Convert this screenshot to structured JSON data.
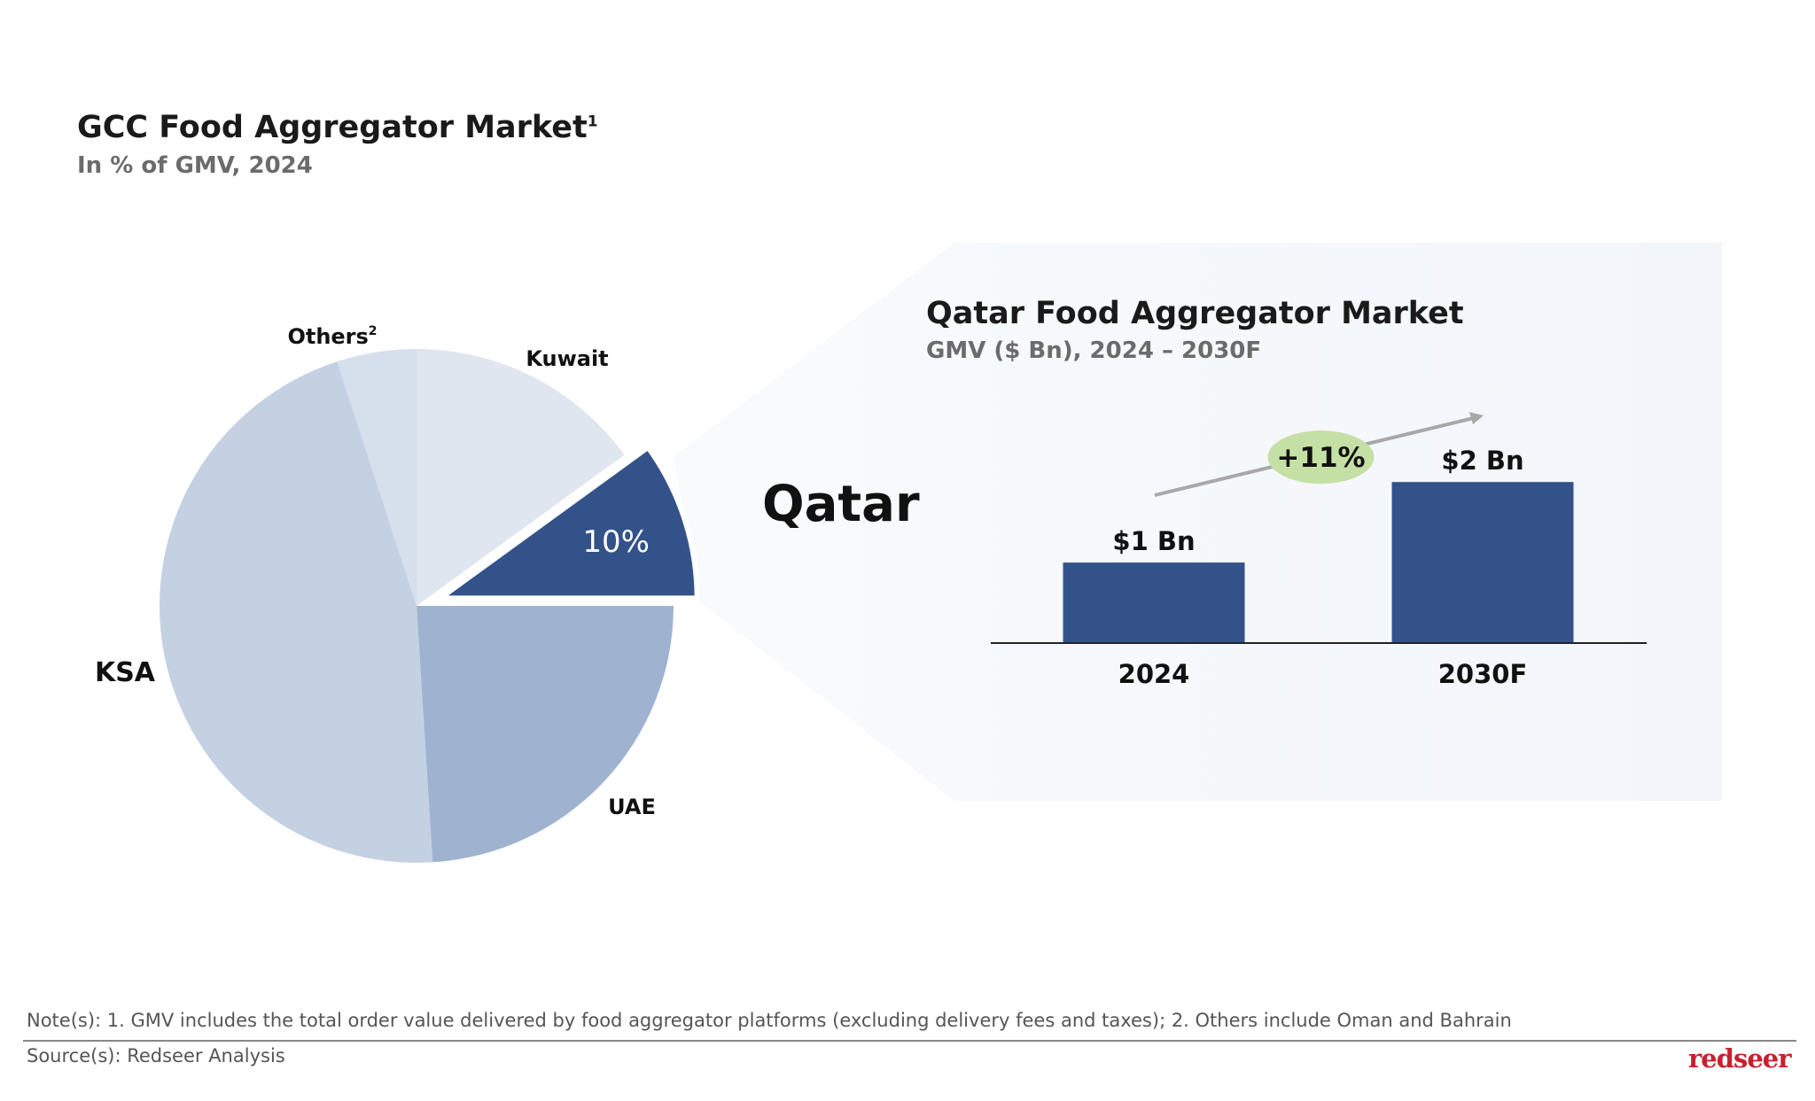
{
  "header": {
    "title": "GCC Food Aggregator Market",
    "title_footnote": "1",
    "subtitle": "In % of GMV, 2024"
  },
  "chart_data": [
    {
      "type": "pie",
      "title": "GCC Food Aggregator Market",
      "subtitle": "In % of GMV, 2024",
      "slices": [
        {
          "label": "Qatar",
          "value": 10,
          "value_label": "10%",
          "color": "#34528a",
          "exploded": true
        },
        {
          "label": "Kuwait",
          "value": 15,
          "color": "#e0e6f0"
        },
        {
          "label": "Others",
          "footnote": "2",
          "value": 5,
          "color": "#d6dfec"
        },
        {
          "label": "KSA",
          "value": 46,
          "color": "#c4d1e3"
        },
        {
          "label": "UAE",
          "value": 24,
          "color": "#9fb3d1"
        }
      ]
    },
    {
      "type": "bar",
      "title": "Qatar Food Aggregator Market",
      "subtitle": "GMV ($ Bn), 2024 – 2030F",
      "categories": [
        "2024",
        "2030F"
      ],
      "values": [
        1,
        2
      ],
      "data_labels": [
        "$1 Bn",
        "$2 Bn"
      ],
      "ylim": [
        0,
        2.2
      ],
      "bar_color": "#34528a",
      "growth_label": "+11%",
      "growth_color": "#c5e0a5"
    }
  ],
  "footer": {
    "note": "Note(s): 1. GMV includes the total order value delivered by food aggregator platforms (excluding delivery fees and taxes); 2. Others include Oman and Bahrain",
    "source": "Source(s): Redseer Analysis",
    "logo": "redseer"
  }
}
